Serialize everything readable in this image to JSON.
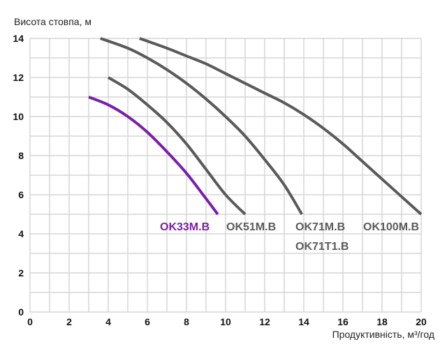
{
  "chart_data": {
    "type": "line",
    "title": "",
    "ylabel": "Висота стовпа, м",
    "xlabel": "Продуктивність, м³/год",
    "xlim": [
      0,
      20
    ],
    "ylim": [
      0,
      14
    ],
    "xticks": [
      0,
      2,
      4,
      6,
      8,
      10,
      12,
      14,
      16,
      18,
      20
    ],
    "yticks": [
      0,
      2,
      4,
      6,
      8,
      10,
      12,
      14
    ],
    "grid": true,
    "series": [
      {
        "name": "OK33M.B",
        "color": "#7a1fa8",
        "x": [
          3,
          4,
          5,
          6,
          7,
          8,
          9,
          9.6
        ],
        "y": [
          11,
          10.6,
          10.0,
          9.2,
          8.2,
          7.1,
          5.8,
          5
        ]
      },
      {
        "name": "OK51M.B",
        "color": "#5a5a5a",
        "x": [
          4,
          5,
          6,
          7,
          8,
          9,
          10,
          11
        ],
        "y": [
          12,
          11.4,
          10.6,
          9.7,
          8.6,
          7.3,
          6.0,
          5
        ]
      },
      {
        "name": "OK71M.B",
        "extra_label": "OK71T1.B",
        "color": "#5a5a5a",
        "x": [
          3.6,
          5,
          6,
          7,
          8,
          9,
          10,
          11,
          12,
          13,
          13.9
        ],
        "y": [
          14,
          13.5,
          13.0,
          12.4,
          11.7,
          10.9,
          10.0,
          9.0,
          7.8,
          6.5,
          5
        ]
      },
      {
        "name": "OK100M.B",
        "color": "#5a5a5a",
        "x": [
          5.6,
          7,
          8,
          9,
          10,
          11,
          12,
          13,
          14,
          15,
          16,
          17,
          18,
          19,
          20
        ],
        "y": [
          14,
          13.5,
          13.1,
          12.7,
          12.2,
          11.7,
          11.2,
          10.7,
          10.1,
          9.4,
          8.6,
          7.7,
          6.8,
          5.9,
          5
        ]
      }
    ]
  }
}
